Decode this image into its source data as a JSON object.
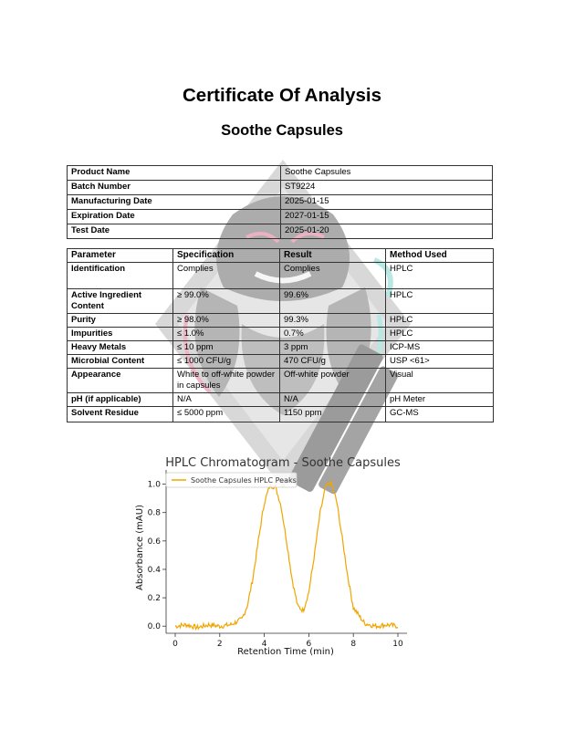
{
  "title": "Certificate Of Analysis",
  "subtitle": "Soothe Capsules",
  "product_info": [
    {
      "label": "Product Name",
      "value": "Soothe Capsules"
    },
    {
      "label": "Batch Number",
      "value": "ST9224"
    },
    {
      "label": "Manufacturing Date",
      "value": "2025-01-15"
    },
    {
      "label": "Expiration Date",
      "value": "2027-01-15"
    },
    {
      "label": "Test Date",
      "value": "2025-01-20"
    }
  ],
  "tests": {
    "headers": [
      "Parameter",
      "Specification",
      "Result",
      "Method Used"
    ],
    "rows": [
      {
        "parameter": "Identification",
        "spec": "Complies",
        "result": "Complies",
        "method": "HPLC"
      },
      {
        "parameter": "Active Ingredient Content",
        "spec": "≥ 99.0%",
        "result": "99.6%",
        "method": "HPLC"
      },
      {
        "parameter": "Purity",
        "spec": "≥ 98.0%",
        "result": "99.3%",
        "method": "HPLC"
      },
      {
        "parameter": "Impurities",
        "spec": "≤ 1.0%",
        "result": "0.7%",
        "method": "HPLC"
      },
      {
        "parameter": "Heavy Metals",
        "spec": "≤ 10 ppm",
        "result": "3 ppm",
        "method": "ICP-MS"
      },
      {
        "parameter": "Microbial Content",
        "spec": "≤ 1000 CFU/g",
        "result": "470 CFU/g",
        "method": "USP <61>"
      },
      {
        "parameter": "Appearance",
        "spec": "White to off-white powder in capsules",
        "result": "Off-white powder",
        "method": "Visual"
      },
      {
        "parameter": "pH (if applicable)",
        "spec": "N/A",
        "result": "N/A",
        "method": "pH Meter"
      },
      {
        "parameter": "Solvent Residue",
        "spec": "≤ 5000 ppm",
        "result": "1150 ppm",
        "method": "GC-MS"
      }
    ]
  },
  "chart_data": {
    "type": "line",
    "title": "HPLC Chromatogram - Soothe Capsules",
    "xlabel": "Retention Time (min)",
    "ylabel": "Absorbance (mAU)",
    "xlim": [
      0,
      10
    ],
    "ylim": [
      -0.05,
      1.1
    ],
    "xticks": [
      0,
      2,
      4,
      6,
      8,
      10
    ],
    "yticks": [
      0.0,
      0.2,
      0.4,
      0.6,
      0.8,
      1.0
    ],
    "grid": false,
    "legend_position": "upper-left",
    "series": [
      {
        "name": "Soothe Capsules HPLC Peaks",
        "color": "#f0a500",
        "x": [
          0,
          0.5,
          1,
          1.5,
          2,
          2.5,
          3,
          3.25,
          3.5,
          3.75,
          4,
          4.25,
          4.5,
          4.75,
          5,
          5.25,
          5.5,
          5.75,
          6,
          6.25,
          6.5,
          6.75,
          7,
          7.25,
          7.5,
          7.75,
          8,
          8.5,
          9,
          9.5,
          10
        ],
        "y": [
          0.0,
          0.01,
          -0.01,
          0.01,
          0.0,
          0.01,
          0.05,
          0.15,
          0.35,
          0.62,
          0.87,
          0.99,
          0.98,
          0.85,
          0.6,
          0.33,
          0.14,
          0.11,
          0.24,
          0.5,
          0.79,
          0.98,
          1.01,
          0.88,
          0.62,
          0.35,
          0.13,
          0.02,
          0.0,
          0.01,
          0.0
        ]
      }
    ]
  }
}
